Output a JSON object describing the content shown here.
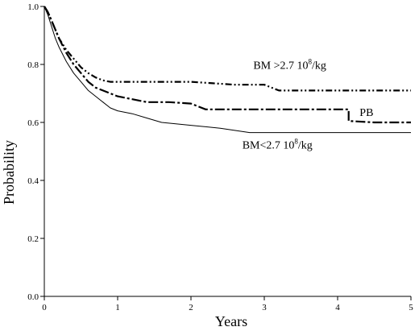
{
  "chart_data": {
    "type": "line",
    "xlabel": "Years",
    "ylabel": "Probability",
    "xlim": [
      0,
      5
    ],
    "ylim": [
      0,
      1
    ],
    "x_ticks": [
      "0",
      "1",
      "2",
      "3",
      "4",
      "5"
    ],
    "y_ticks": [
      "0.0",
      "0.2",
      "0.4",
      "0.6",
      "0.8",
      "1.0"
    ],
    "grid": false,
    "series": [
      {
        "name": "BM >2.7 10⁸/kg",
        "line_style": "dash-dot-dot",
        "color": "#000000",
        "points": [
          [
            0,
            1.0
          ],
          [
            0.05,
            0.98
          ],
          [
            0.1,
            0.95
          ],
          [
            0.15,
            0.92
          ],
          [
            0.2,
            0.89
          ],
          [
            0.3,
            0.85
          ],
          [
            0.4,
            0.82
          ],
          [
            0.5,
            0.79
          ],
          [
            0.6,
            0.77
          ],
          [
            0.7,
            0.755
          ],
          [
            0.8,
            0.745
          ],
          [
            0.9,
            0.74
          ],
          [
            1.0,
            0.74
          ],
          [
            1.5,
            0.74
          ],
          [
            2.0,
            0.74
          ],
          [
            2.3,
            0.735
          ],
          [
            2.6,
            0.73
          ],
          [
            3.0,
            0.73
          ],
          [
            3.2,
            0.71
          ],
          [
            3.5,
            0.71
          ],
          [
            4.0,
            0.71
          ],
          [
            4.5,
            0.71
          ],
          [
            5.0,
            0.71
          ]
        ]
      },
      {
        "name": "PB",
        "line_style": "long-dash-dot",
        "color": "#000000",
        "points": [
          [
            0,
            1.0
          ],
          [
            0.05,
            0.98
          ],
          [
            0.1,
            0.95
          ],
          [
            0.15,
            0.92
          ],
          [
            0.2,
            0.89
          ],
          [
            0.3,
            0.84
          ],
          [
            0.4,
            0.8
          ],
          [
            0.5,
            0.77
          ],
          [
            0.6,
            0.74
          ],
          [
            0.7,
            0.72
          ],
          [
            0.8,
            0.71
          ],
          [
            0.9,
            0.7
          ],
          [
            1.0,
            0.69
          ],
          [
            1.2,
            0.68
          ],
          [
            1.4,
            0.67
          ],
          [
            1.7,
            0.67
          ],
          [
            2.0,
            0.665
          ],
          [
            2.2,
            0.645
          ],
          [
            2.5,
            0.645
          ],
          [
            3.0,
            0.645
          ],
          [
            3.5,
            0.645
          ],
          [
            4.15,
            0.645
          ],
          [
            4.15,
            0.605
          ],
          [
            4.5,
            0.6
          ],
          [
            5.0,
            0.6
          ]
        ]
      },
      {
        "name": "BM<2.7 10⁸/kg",
        "line_style": "solid-thin",
        "color": "#000000",
        "points": [
          [
            0,
            1.0
          ],
          [
            0.05,
            0.97
          ],
          [
            0.1,
            0.93
          ],
          [
            0.15,
            0.89
          ],
          [
            0.2,
            0.86
          ],
          [
            0.3,
            0.81
          ],
          [
            0.4,
            0.77
          ],
          [
            0.5,
            0.74
          ],
          [
            0.6,
            0.71
          ],
          [
            0.7,
            0.69
          ],
          [
            0.8,
            0.67
          ],
          [
            0.9,
            0.65
          ],
          [
            1.0,
            0.64
          ],
          [
            1.2,
            0.63
          ],
          [
            1.4,
            0.615
          ],
          [
            1.6,
            0.6
          ],
          [
            2.0,
            0.59
          ],
          [
            2.4,
            0.58
          ],
          [
            2.8,
            0.565
          ],
          [
            3.0,
            0.565
          ],
          [
            3.5,
            0.565
          ],
          [
            4.0,
            0.565
          ],
          [
            4.5,
            0.565
          ],
          [
            5.0,
            0.565
          ]
        ]
      }
    ],
    "annotations": [
      {
        "text": "BM >2.7 10",
        "sup": "8",
        "suffix": "/kg",
        "x": 2.85,
        "y": 0.785
      },
      {
        "text": "PB",
        "sup": "",
        "suffix": "",
        "x": 4.3,
        "y": 0.622
      },
      {
        "text": "BM<2.7 10",
        "sup": "8",
        "suffix": "/kg",
        "x": 2.7,
        "y": 0.51
      }
    ]
  }
}
